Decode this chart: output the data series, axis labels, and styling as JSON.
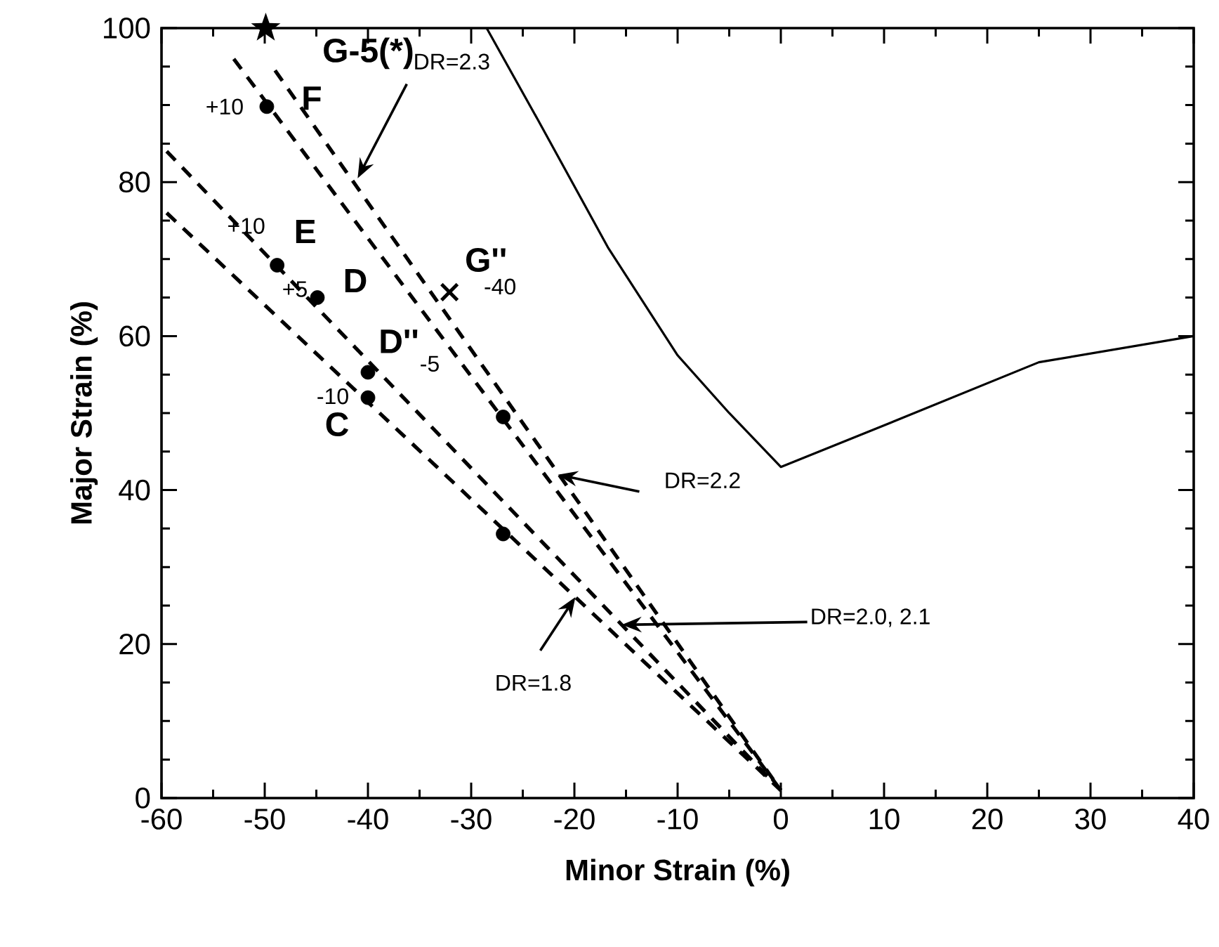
{
  "chart_data": {
    "type": "line",
    "xlabel": "Minor Strain (%)",
    "ylabel": "Major Strain (%)",
    "xlim": [
      -60,
      40
    ],
    "ylim": [
      0,
      100
    ],
    "xticks": [
      -60,
      -50,
      -40,
      -30,
      -20,
      -10,
      0,
      10,
      20,
      30,
      40
    ],
    "yticks": [
      0,
      20,
      40,
      60,
      80,
      100
    ],
    "series": [
      {
        "type": "line",
        "color": "#000000",
        "line_style": "solid",
        "marker": "none",
        "x": [
          -28.5,
          -23.5,
          -16.7,
          -10,
          -5,
          0,
          10,
          25,
          40
        ],
        "values": [
          100,
          88,
          71.4,
          57.5,
          50,
          43,
          48.4,
          56.6,
          60
        ]
      },
      {
        "type": "line",
        "color": "#000000",
        "line_style": "dashed",
        "marker": "none",
        "x": [
          -59.5,
          0
        ],
        "values": [
          76,
          1
        ]
      },
      {
        "type": "line",
        "color": "#000000",
        "line_style": "dashed",
        "marker": "none",
        "x": [
          -59.5,
          0
        ],
        "values": [
          84,
          1
        ]
      },
      {
        "type": "line",
        "color": "#000000",
        "line_style": "dashed",
        "marker": "none",
        "x": [
          -53,
          0
        ],
        "values": [
          96,
          1
        ]
      },
      {
        "type": "line",
        "color": "#000000",
        "line_style": "dashed",
        "marker": "none",
        "x": [
          -49,
          0
        ],
        "values": [
          94.5,
          1
        ]
      },
      {
        "type": "scatter",
        "color": "#000000",
        "marker": "circle",
        "x": [
          -49.8,
          -48.8,
          -44.9,
          -40,
          -40,
          -26.9,
          -26.9
        ],
        "values": [
          89.8,
          69.2,
          65,
          55.3,
          52,
          49.5,
          34.3
        ]
      },
      {
        "type": "scatter",
        "color": "#000000",
        "marker": "star",
        "x": [
          -49.9
        ],
        "values": [
          100
        ]
      },
      {
        "type": "scatter",
        "color": "#000000",
        "marker": "cross",
        "x": [
          -32.1
        ],
        "values": [
          65.7
        ]
      }
    ],
    "annotations": [
      {
        "text": "G-5(*)",
        "x": -49.9,
        "y": 100
      },
      {
        "text": "+10",
        "x": -49.8,
        "y": 89.8
      },
      {
        "text": "F",
        "x": -49.8,
        "y": 89.8
      },
      {
        "text": "+10",
        "x": -48.8,
        "y": 69.2
      },
      {
        "text": "E",
        "x": -48.8,
        "y": 69.2
      },
      {
        "text": "+5",
        "x": -44.9,
        "y": 65
      },
      {
        "text": "D",
        "x": -44.9,
        "y": 65
      },
      {
        "text": "D''",
        "x": -40,
        "y": 55.3
      },
      {
        "text": "-5",
        "x": -40,
        "y": 55.3
      },
      {
        "text": "-10",
        "x": -40,
        "y": 52
      },
      {
        "text": "C",
        "x": -40,
        "y": 52
      },
      {
        "text": "G''",
        "x": -32.1,
        "y": 65.7
      },
      {
        "text": "-40",
        "x": -32.1,
        "y": 65.7
      },
      {
        "text": "DR=2.3",
        "x": -41,
        "y": 80.5
      },
      {
        "text": "DR=2.2",
        "x": -21.6,
        "y": 42
      },
      {
        "text": "DR=2.0, 2.1",
        "x": -15.4,
        "y": 22.5
      },
      {
        "text": "DR=1.8",
        "x": -19.9,
        "y": 26.1
      }
    ]
  }
}
